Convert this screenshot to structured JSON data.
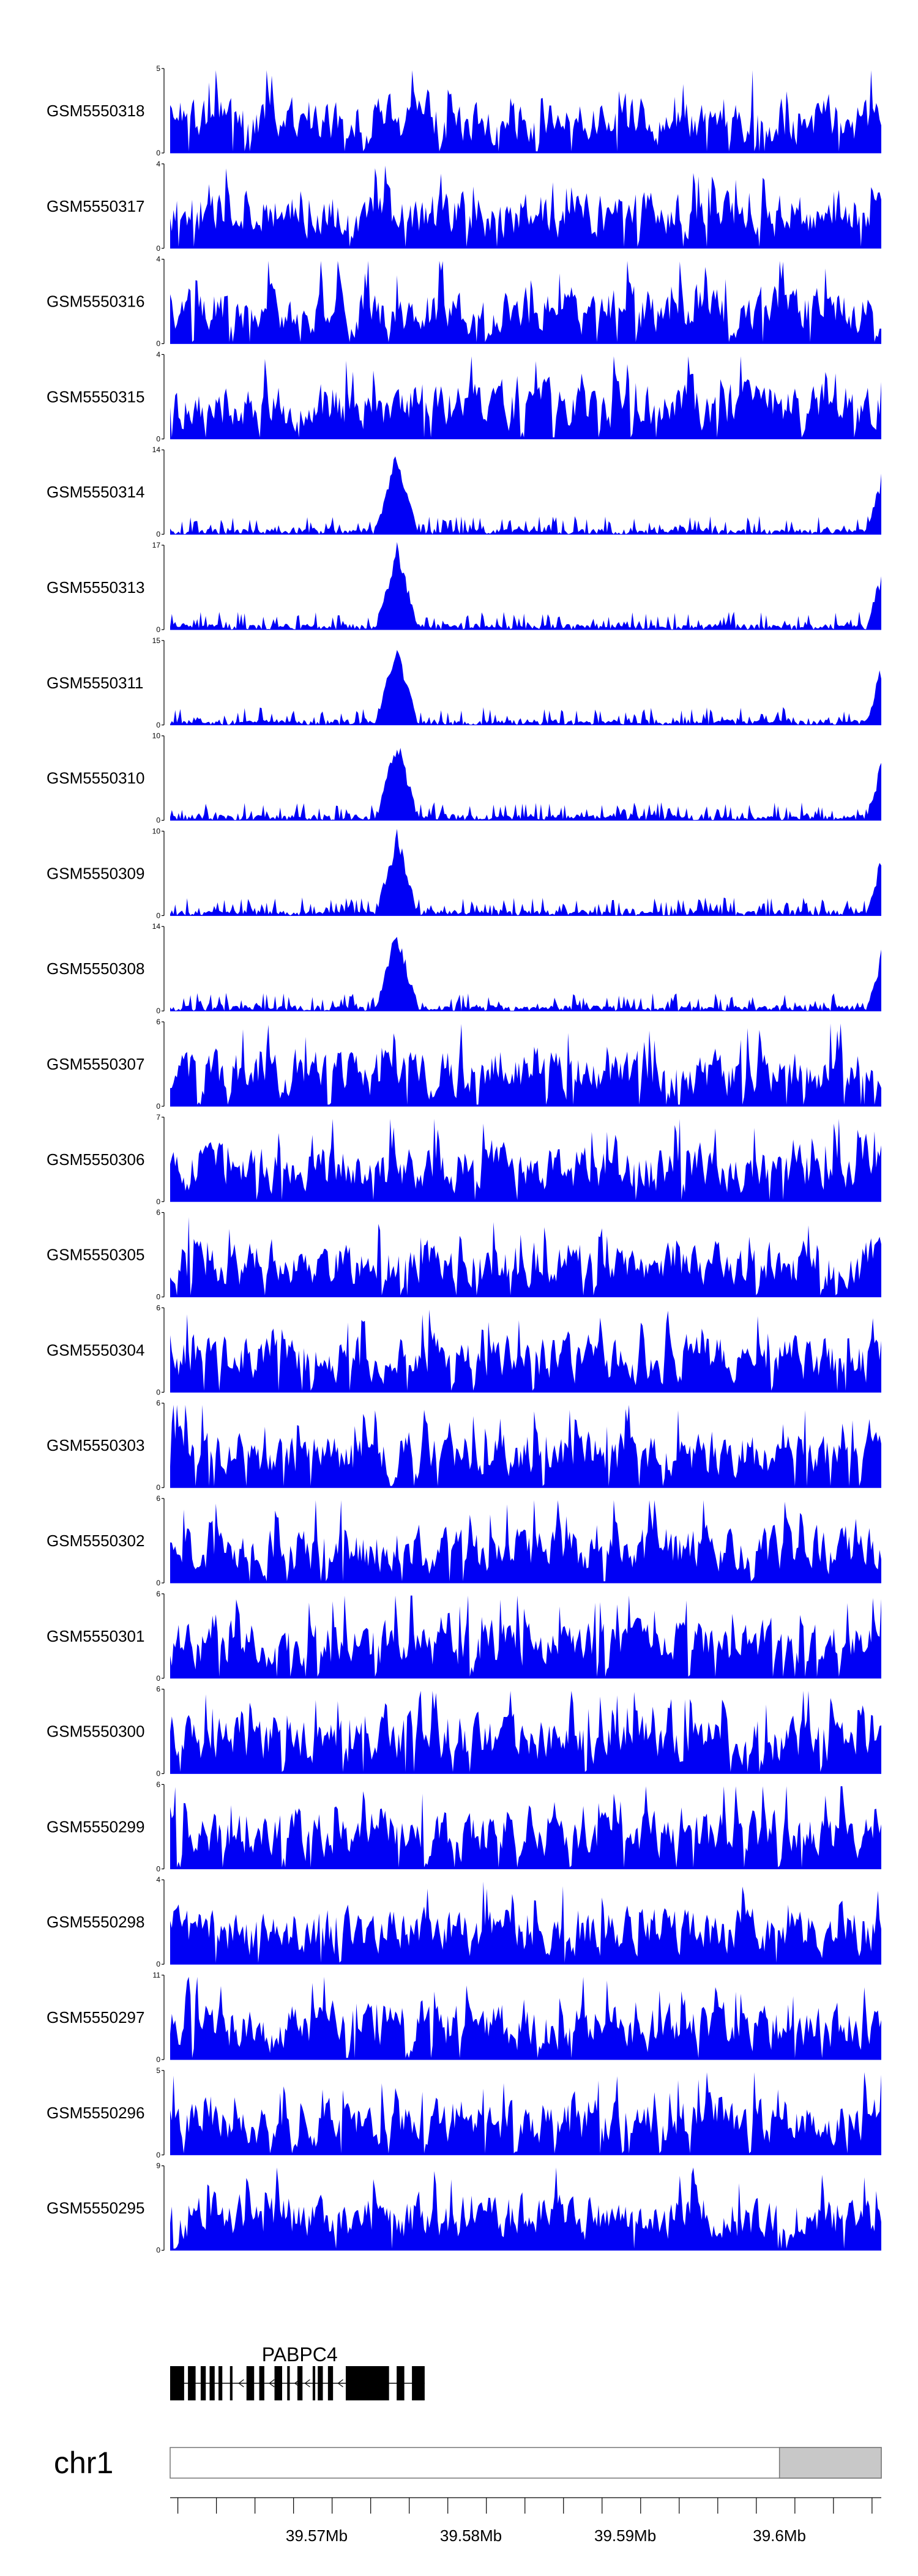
{
  "chart_data": {
    "type": "area",
    "tracks": [
      {
        "name": "GSM5550318",
        "ymax": 5
      },
      {
        "name": "GSM5550317",
        "ymax": 4
      },
      {
        "name": "GSM5550316",
        "ymax": 4
      },
      {
        "name": "GSM5550315",
        "ymax": 4
      },
      {
        "name": "GSM5550314",
        "ymax": 14
      },
      {
        "name": "GSM5550313",
        "ymax": 17
      },
      {
        "name": "GSM5550311",
        "ymax": 15
      },
      {
        "name": "GSM5550310",
        "ymax": 10
      },
      {
        "name": "GSM5550309",
        "ymax": 10
      },
      {
        "name": "GSM5550308",
        "ymax": 14
      },
      {
        "name": "GSM5550307",
        "ymax": 6
      },
      {
        "name": "GSM5550306",
        "ymax": 7
      },
      {
        "name": "GSM5550305",
        "ymax": 6
      },
      {
        "name": "GSM5550304",
        "ymax": 6
      },
      {
        "name": "GSM5550303",
        "ymax": 6
      },
      {
        "name": "GSM5550302",
        "ymax": 6
      },
      {
        "name": "GSM5550301",
        "ymax": 6
      },
      {
        "name": "GSM5550300",
        "ymax": 6
      },
      {
        "name": "GSM5550299",
        "ymax": 6
      },
      {
        "name": "GSM5550298",
        "ymax": 4
      },
      {
        "name": "GSM5550297",
        "ymax": 11
      },
      {
        "name": "GSM5550296",
        "ymax": 5
      },
      {
        "name": "GSM5550295",
        "ymax": 9
      }
    ],
    "x_range_mb": [
      39.5605,
      39.6066
    ],
    "peak_mb": 39.5752,
    "gene": {
      "name": "PABPC4",
      "start_mb": 39.5605,
      "end_mb": 39.577
    },
    "chromosome": "chr1",
    "chromosome_highlight_mb": [
      39.6,
      39.6066
    ],
    "x_ticks": [
      {
        "value": 39.57,
        "label": "39.57Mb"
      },
      {
        "value": 39.58,
        "label": "39.58Mb"
      },
      {
        "value": 39.59,
        "label": "39.59Mb"
      },
      {
        "value": 39.6,
        "label": "39.6Mb"
      }
    ],
    "color": "#0000f5"
  }
}
